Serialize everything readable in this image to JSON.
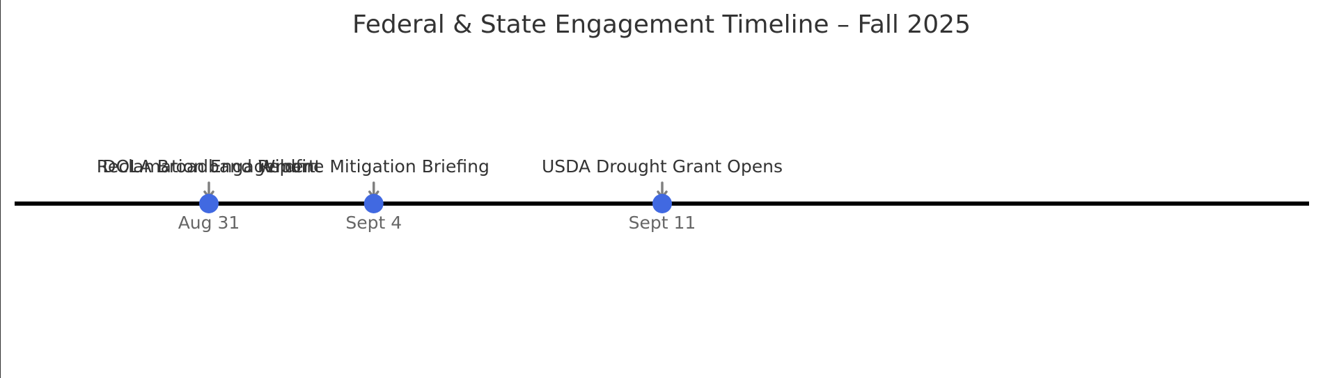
{
  "title": "Federal & State Engagement Timeline – Fall 2025",
  "colors": {
    "axis_line": "#000000",
    "marker": "#4169e1",
    "arrow": "#808080",
    "title_text": "#333333",
    "event_text": "#333333",
    "date_text": "#666666"
  },
  "events": [
    {
      "date": "Aug 31",
      "day_index": 0,
      "labels": [
        "Reclamation Engagement",
        "DOLA Broadband Report"
      ]
    },
    {
      "date": "Sept 4",
      "day_index": 4,
      "labels": [
        "Wildfire Mitigation Briefing"
      ]
    },
    {
      "date": "Sept 11",
      "day_index": 11,
      "labels": [
        "USDA Drought Grant Opens"
      ]
    }
  ]
}
